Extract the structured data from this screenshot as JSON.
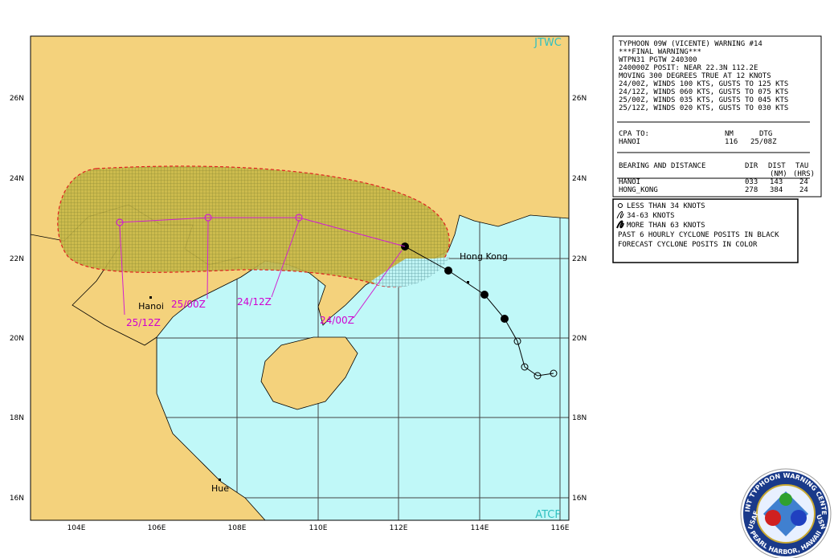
{
  "map": {
    "corner_top": "JTWC",
    "corner_bottom": "ATCF",
    "lat_labels": [
      "26N",
      "24N",
      "22N",
      "20N",
      "18N",
      "16N"
    ],
    "lon_labels": [
      "104E",
      "106E",
      "108E",
      "110E",
      "112E",
      "114E",
      "116E"
    ],
    "cities": [
      "Hanoi",
      "Hue",
      "Hong Kong"
    ],
    "forecast_labels": [
      "24/00Z",
      "24/12Z",
      "25/00Z",
      "25/12Z"
    ]
  },
  "warning": {
    "lines": [
      "TYPHOON 09W (VICENTE) WARNING #14",
      "***FINAL WARNING***",
      "WTPN31 PGTW 240300",
      "240000Z POSIT: NEAR 22.3N 112.2E",
      "MOVING 300 DEGREES TRUE AT 12 KNOTS",
      "24/00Z, WINDS 100 KTS, GUSTS TO 125 KTS",
      "24/12Z, WINDS 060 KTS, GUSTS TO 075 KTS",
      "25/00Z, WINDS 035 KTS, GUSTS TO 045 KTS",
      "25/12Z, WINDS 020 KTS, GUSTS TO 030 KTS"
    ]
  },
  "cpa": {
    "header": [
      "CPA TO:",
      "NM",
      "DTG"
    ],
    "row": [
      "HANOI",
      "116",
      "25/08Z"
    ]
  },
  "bearing": {
    "header": [
      "BEARING AND DISTANCE",
      "DIR",
      "DIST",
      "TAU"
    ],
    "subheader": [
      "(NM)",
      "(HRS)"
    ],
    "rows": [
      [
        "HANOI",
        "033",
        "143",
        "24"
      ],
      [
        "HONG_KONG",
        "278",
        "384",
        "24"
      ]
    ]
  },
  "legend": {
    "lines": [
      "LESS THAN 34 KNOTS",
      "34-63 KNOTS",
      "MORE THAN 63 KNOTS",
      "PAST 6 HOURLY CYCLONE POSITS IN BLACK",
      "FORECAST CYCLONE POSITS IN COLOR"
    ]
  },
  "logo": {
    "top": "JOINT TYPHOON WARNING CENTER",
    "bottom": "PEARL HARBOR, HAWAII",
    "left": "USAF",
    "right": "USN"
  }
}
